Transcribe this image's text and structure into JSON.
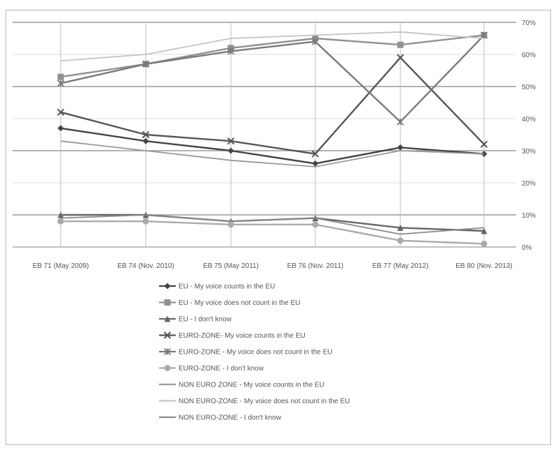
{
  "chart_data": {
    "type": "line",
    "title": "",
    "xlabel": "",
    "ylabel": "",
    "x": [
      "EB 71 (May 2009)",
      "EB 74 (Nov. 2010)",
      "EB 75 (May 2011)",
      "EB 76 (Nov. 2011)",
      "EB 77 (May 2012)",
      "EB 80 (Nov. 2013)"
    ],
    "ylim": [
      0,
      70
    ],
    "yticks": [
      0,
      10,
      20,
      30,
      40,
      50,
      60,
      70
    ],
    "ytick_labels": [
      "0%",
      "10%",
      "20%",
      "30%",
      "40%",
      "50%",
      "60%",
      "70%"
    ],
    "y_axis_position": "right",
    "grid": true,
    "legend_position": "bottom",
    "series": [
      {
        "name": "EU - My voice counts in the EU",
        "values": [
          37,
          33,
          30,
          26,
          31,
          29
        ],
        "color": "#444444",
        "marker": "diamond"
      },
      {
        "name": "EU - My voice does not count in the EU",
        "values": [
          53,
          57,
          62,
          65,
          63,
          66
        ],
        "color": "#909090",
        "marker": "square"
      },
      {
        "name": "EU - I don't know",
        "values": [
          10,
          10,
          8,
          9,
          6,
          5
        ],
        "color": "#666666",
        "marker": "triangle"
      },
      {
        "name": "EURO-ZONE- My voice counts in the EU",
        "values": [
          42,
          35,
          33,
          29,
          59,
          32
        ],
        "color": "#555555",
        "marker": "x"
      },
      {
        "name": "EURO-ZONE - My voice does not count in the EU",
        "values": [
          51,
          57,
          61,
          64,
          39,
          66
        ],
        "color": "#7a7a7a",
        "marker": "star"
      },
      {
        "name": "EURO-ZONE - I don't know",
        "values": [
          8,
          8,
          7,
          7,
          2,
          1
        ],
        "color": "#aaaaaa",
        "marker": "circle"
      },
      {
        "name": "NON EURO ZONE - My voice counts in the EU",
        "values": [
          33,
          30,
          27,
          25,
          30,
          29
        ],
        "color": "#9a9a9a",
        "marker": "none"
      },
      {
        "name": "NON EURO-ZONE - My voice does not count in the EU",
        "values": [
          58,
          60,
          65,
          66,
          67,
          65
        ],
        "color": "#c4c4c4",
        "marker": "none"
      },
      {
        "name": "NON EURO-ZONE - I don't know",
        "values": [
          9,
          10,
          8,
          9,
          4,
          6
        ],
        "color": "#8a8a8a",
        "marker": "none"
      }
    ]
  }
}
